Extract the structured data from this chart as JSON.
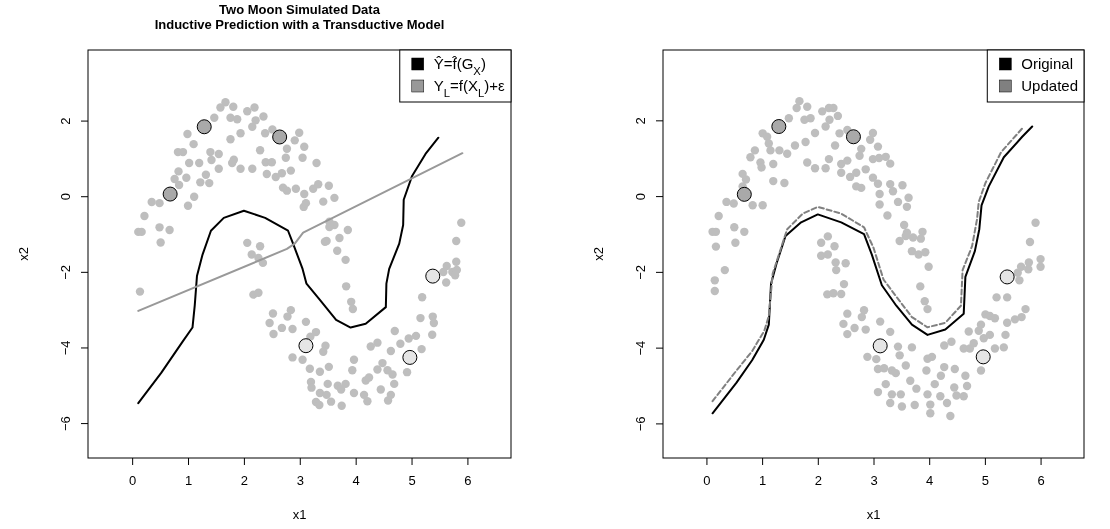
{
  "chart_data": [
    {
      "type": "scatter",
      "title": "Two Moon Simulated Data",
      "subtitle": "Inductive Prediction with a Transductive Model",
      "xlabel": "x1",
      "ylabel": "x2",
      "xlim": [
        -0.79,
        6.78
      ],
      "ylim": [
        -6.91,
        3.88
      ],
      "xticks": [
        0,
        1,
        2,
        3,
        4,
        5,
        6
      ],
      "yticks": [
        {
          "value": -6,
          "label": "−6"
        },
        {
          "value": -4,
          "label": "−4"
        },
        {
          "value": -2,
          "label": "−2"
        },
        {
          "value": 0,
          "label": "0"
        },
        {
          "value": 2,
          "label": "2"
        }
      ],
      "legend": "top right",
      "series": [
        {
          "type": "scatter",
          "marker": "circle",
          "color": "#bebebe",
          "x": [
            1.67,
            1.58,
            1.81,
            2.06,
            2.19,
            2.35,
            2.21,
            1.76,
            1.88,
            1.94,
            2.15,
            2.38,
            2.51,
            1.47,
            0.99,
            1.1,
            1.76,
            2.91,
            2.99,
            3.08,
            2.77,
            2.29,
            0.82,
            0.91,
            1.4,
            1.55,
            1.02,
            1.2,
            1.42,
            1.82,
            1.79,
            1.94,
            2.15,
            2.39,
            2.5,
            2.75,
            3.05,
            3.3,
            2.41,
            2.57,
            2.68,
            2.84,
            1.55,
            1.32,
            0.97,
            0.83,
            0.76,
            1.22,
            1.38,
            0.84,
            2.7,
            2.77,
            2.93,
            3.24,
            3.33,
            3.52,
            3.08,
            3.07,
            3.11,
            3.42,
            3.62,
            0.35,
            0.49,
            1.11,
            1.0,
            0.22,
            0.11,
            0.17,
            0.49,
            0.67,
            0.51,
            0.14,
            3.53,
            3.62,
            3.53,
            3.86,
            3.48,
            3.45,
            3.71,
            3.67,
            3.82,
            3.83,
            3.92,
            3.95,
            2.06,
            2.29,
            2.14,
            2.26,
            2.34,
            2.17,
            2.26,
            2.52,
            2.46,
            2.68,
            2.53,
            2.78,
            2.84,
            2.87,
            3.11,
            3.29,
            3.19,
            3.46,
            3.42,
            2.87,
            3.05,
            3.18,
            3.36,
            3.52,
            3.97,
            3.94,
            3.2,
            3.21,
            3.5,
            3.68,
            3.82,
            3.74,
            3.36,
            3.48,
            3.29,
            3.35,
            3.56,
            3.75,
            3.97,
            4.15,
            4.21,
            4.18,
            4.24,
            4.27,
            4.39,
            4.39,
            4.48,
            4.57,
            4.63,
            4.7,
            4.8,
            4.66,
            4.69,
            4.45,
            4.63,
            4.58,
            4.92,
            4.95,
            5.08,
            5.18,
            5.16,
            5.19,
            5.38,
            5.37,
            5.4,
            5.57,
            5.63,
            5.62,
            5.73,
            5.8,
            5.81,
            5.78,
            5.8,
            5.89
          ],
          "values": [
            2.5,
            2.36,
            2.38,
            2.26,
            2.36,
            2.12,
            2.02,
            2.09,
            2.05,
            1.68,
            1.85,
            1.68,
            1.78,
            2.09,
            1.66,
            1.39,
            1.52,
            1.49,
            1.69,
            1.32,
            1.27,
            1.23,
            1.18,
            1.18,
            1.18,
            1.13,
            0.89,
            0.89,
            0.97,
            0.98,
            0.89,
            0.74,
            0.74,
            0.91,
            0.91,
            1.03,
            1.03,
            0.89,
            0.6,
            0.52,
            0.62,
            0.69,
            0.74,
            0.58,
            0.5,
            0.67,
            0.47,
            0.38,
            0.36,
            0.31,
            0.24,
            0.16,
            0.21,
            0.21,
            0.33,
            0.29,
            0.07,
            -0.27,
            -0.17,
            -0.13,
            -0.03,
            -0.14,
            -0.17,
            0.0,
            -0.24,
            -0.51,
            -0.93,
            -0.93,
            -0.81,
            -0.88,
            -1.21,
            -2.51,
            -0.66,
            -0.75,
            -0.8,
            -0.88,
            -1.17,
            -1.19,
            -1.09,
            -1.43,
            -1.67,
            -2.37,
            -2.78,
            -2.97,
            -1.22,
            -1.31,
            -1.53,
            -1.62,
            -1.75,
            -2.59,
            -2.54,
            -3.09,
            -3.34,
            -3.47,
            -3.63,
            -3.17,
            -3.0,
            -3.5,
            -3.31,
            -3.58,
            -3.7,
            -3.94,
            -4.1,
            -4.25,
            -4.31,
            -4.55,
            -4.63,
            -4.5,
            -4.31,
            -4.59,
            -4.9,
            -5.05,
            -4.95,
            -5.0,
            -4.95,
            -5.1,
            -5.19,
            -5.24,
            -5.43,
            -5.51,
            -5.42,
            -5.53,
            -5.19,
            -5.24,
            -5.41,
            -4.86,
            -4.78,
            -3.96,
            -3.86,
            -4.57,
            -4.4,
            -4.59,
            -4.08,
            -3.55,
            -3.89,
            -4.7,
            -4.95,
            -5.1,
            -5.24,
            -5.39,
            -4.64,
            -3.75,
            -3.68,
            -4.03,
            -3.21,
            -2.66,
            -3.17,
            -3.65,
            -3.34,
            -1.99,
            -1.83,
            -2.27,
            -1.99,
            -1.72,
            -1.94,
            -2.08,
            -1.17,
            -0.69
          ]
        },
        {
          "type": "scatter",
          "marker": "circle",
          "colors": [
            "#a9a9a9",
            "#a9a9a9",
            "#a9a9a9",
            "#e5e5e5",
            "#e5e5e5",
            "#e5e5e5"
          ],
          "x": [
            1.29,
            2.64,
            0.68,
            5.38,
            3.11,
            4.97
          ],
          "values": [
            1.85,
            1.58,
            0.07,
            -2.1,
            -3.94,
            -4.25
          ]
        },
        {
          "type": "line",
          "name": "Ŷ=f̂(G$_{X}$)",
          "color": "#000000",
          "line_style": "solid",
          "x": [
            0.11,
            0.52,
            0.9,
            1.08,
            1.12,
            1.16,
            1.26,
            1.41,
            1.64,
            2.0,
            2.38,
            2.79,
            2.88,
            3.05,
            3.12,
            3.36,
            3.65,
            3.91,
            4.18,
            4.54,
            4.55,
            4.6,
            4.78,
            4.85,
            4.86,
            5.01,
            5.25,
            5.48
          ],
          "values": [
            -5.46,
            -4.66,
            -3.84,
            -3.46,
            -2.88,
            -2.1,
            -1.53,
            -0.9,
            -0.56,
            -0.37,
            -0.56,
            -0.9,
            -1.24,
            -1.91,
            -2.3,
            -2.73,
            -3.26,
            -3.46,
            -3.36,
            -2.92,
            -2.3,
            -1.91,
            -1.24,
            -0.75,
            -0.08,
            0.55,
            1.13,
            1.56
          ]
        },
        {
          "type": "line",
          "name": "Y$_{L}$=f(X$_{L}$)+ε",
          "color": "#999999",
          "line_style": "solid",
          "x": [
            0.11,
            2.77,
            2.91,
            3.06,
            5.91
          ],
          "values": [
            -3.02,
            -1.38,
            -1.24,
            -0.95,
            1.15
          ]
        }
      ]
    },
    {
      "type": "scatter",
      "xlabel": "x1",
      "ylabel": "x2",
      "xlim": [
        -0.78,
        6.78
      ],
      "ylim": [
        -6.9,
        3.87
      ],
      "xticks": [
        0,
        1,
        2,
        3,
        4,
        5,
        6
      ],
      "yticks": [
        {
          "value": -6,
          "label": "−6"
        },
        {
          "value": -4,
          "label": "−4"
        },
        {
          "value": -2,
          "label": "−2"
        },
        {
          "value": 0,
          "label": "0"
        },
        {
          "value": 2,
          "label": "2"
        }
      ],
      "legend": "top right",
      "series": [
        {
          "type": "scatter",
          "marker": "circle",
          "color": "#bebebe",
          "x": [
            1.67,
            1.62,
            1.81,
            2.08,
            2.2,
            2.28,
            2.36,
            2.21,
            1.87,
            1.76,
            2.14,
            1.95,
            1.48,
            1.01,
            1.09,
            1.12,
            1.78,
            1.59,
            2.31,
            2.39,
            2.53,
            2.99,
            2.94,
            3.08,
            2.78,
            2.75,
            0.87,
            0.79,
            1.15,
            1.31,
            1.45,
            0.97,
            1.2,
            0.99,
            1.81,
            1.95,
            2.14,
            2.2,
            2.42,
            2.53,
            2.42,
            2.58,
            2.69,
            2.86,
            2.99,
            3.1,
            3.22,
            3.3,
            2.99,
            3.08,
            2.78,
            2.69,
            3.11,
            3.3,
            3.35,
            3.52,
            3.44,
            3.6,
            3.63,
            3.11,
            3.25,
            0.65,
            0.71,
            0.65,
            0.83,
            1.01,
            1.4,
            1.2,
            0.36,
            0.49,
            0.22,
            0.11,
            0.17,
            0.5,
            0.68,
            0.52,
            0.17,
            0.33,
            0.15,
            0.15,
            3.55,
            3.6,
            3.47,
            3.58,
            3.71,
            3.88,
            3.85,
            3.69,
            3.81,
            3.93,
            3.99,
            3.84,
            3.92,
            3.97,
            2.06,
            2.18,
            2.3,
            2.06,
            2.18,
            2.32,
            2.33,
            2.5,
            2.47,
            2.28,
            2.17,
            2.42,
            2.53,
            2.46,
            2.83,
            2.79,
            2.86,
            2.66,
            2.53,
            3.12,
            3.3,
            2.89,
            3.05,
            3.08,
            3.19,
            3.44,
            3.69,
            3.47,
            3.33,
            3.58,
            3.4,
            3.22,
            3.08,
            3.33,
            3.3,
            3.49,
            3.51,
            3.66,
            3.77,
            3.74,
            3.97,
            4.02,
            4.02,
            3.95,
            3.97,
            4.05,
            4.1,
            4.21,
            4.2,
            4.32,
            4.38,
            4.27,
            4.4,
            4.46,
            4.27,
            4.45,
            4.49,
            4.62,
            4.68,
            4.65,
            4.62,
            4.73,
            4.8,
            4.71,
            4.89,
            4.93,
            4.93,
            4.98,
            5.01,
            5.09,
            5.18,
            5.09,
            5.18,
            5.34,
            5.4,
            5.37,
            5.54,
            5.66,
            5.73,
            5.21,
            5.4,
            5.62,
            5.65,
            5.59,
            5.79,
            5.78,
            6.0,
            6.0,
            5.81,
            5.91
          ],
          "values": [
            2.52,
            2.34,
            2.37,
            2.25,
            2.34,
            2.34,
            2.13,
            2.03,
            2.07,
            2.03,
            1.85,
            1.68,
            2.07,
            1.67,
            1.58,
            1.4,
            1.44,
            1.35,
            1.35,
            1.67,
            1.76,
            1.68,
            1.5,
            1.32,
            1.26,
            1.08,
            1.22,
            1.04,
            1.22,
            1.22,
            1.13,
            0.9,
            0.86,
            0.77,
            0.9,
            0.75,
            0.75,
            0.99,
            0.86,
            0.95,
            0.63,
            0.52,
            0.63,
            0.72,
            0.99,
            1.02,
            1.05,
            0.87,
            0.5,
            0.34,
            0.23,
            0.27,
            0.07,
            0.33,
            0.14,
            0.3,
            -0.14,
            -0.27,
            -0.03,
            -0.21,
            -0.5,
            0.6,
            0.45,
            0.27,
            -0.23,
            -0.23,
            0.36,
            0.41,
            -0.14,
            -0.18,
            -0.51,
            -0.93,
            -0.93,
            -0.81,
            -0.93,
            -1.22,
            -1.32,
            -1.94,
            -2.21,
            -2.49,
            -0.75,
            -0.95,
            -1.17,
            -1.04,
            -1.08,
            -0.93,
            -1.11,
            -1.44,
            -1.53,
            -1.47,
            -1.85,
            -2.37,
            -2.76,
            -2.97,
            -1.22,
            -1.05,
            -1.31,
            -1.56,
            -1.53,
            -1.74,
            -1.94,
            -1.76,
            -2.31,
            -2.55,
            -2.58,
            -2.57,
            -3.09,
            -3.36,
            -3.0,
            -3.18,
            -3.51,
            -3.47,
            -3.63,
            -3.3,
            -3.57,
            -4.23,
            -4.29,
            -4.55,
            -4.53,
            -3.96,
            -3.98,
            -4.19,
            -4.59,
            -4.46,
            -4.66,
            -4.95,
            -5.16,
            -5.22,
            -5.45,
            -5.22,
            -5.54,
            -4.86,
            -5.07,
            -5.5,
            -5.22,
            -5.49,
            -5.72,
            -4.59,
            -4.28,
            -4.23,
            -4.95,
            -4.73,
            -5.27,
            -5.45,
            -5.79,
            -4.5,
            -3.83,
            -4.55,
            -3.93,
            -5.04,
            -5.25,
            -5.27,
            -5.0,
            -4.73,
            -4.01,
            -4.01,
            -3.87,
            -3.56,
            -3.54,
            -3.38,
            -4.59,
            -3.74,
            -3.11,
            -3.15,
            -3.21,
            -3.65,
            -4.01,
            -3.98,
            -3.33,
            -3.65,
            -3.24,
            -3.18,
            -2.97,
            -2.66,
            -2.66,
            -2.21,
            -1.85,
            -2.01,
            -1.74,
            -1.92,
            -1.65,
            -1.85,
            -1.2,
            -0.69
          ]
        },
        {
          "type": "scatter",
          "marker": "circle",
          "colors": [
            "#a9a9a9",
            "#a9a9a9",
            "#a9a9a9",
            "#e5e5e5",
            "#e5e5e5",
            "#e5e5e5"
          ],
          "x": [
            1.3,
            2.64,
            0.68,
            5.4,
            3.12,
            4.97
          ],
          "values": [
            1.85,
            1.58,
            0.06,
            -2.12,
            -3.94,
            -4.23
          ]
        },
        {
          "type": "line",
          "name": "Original",
          "color": "#000000",
          "line_style": "solid",
          "x": [
            0.11,
            0.54,
            0.82,
            1.03,
            1.12,
            1.16,
            1.26,
            1.42,
            1.7,
            2.0,
            2.42,
            2.83,
            2.97,
            3.15,
            3.41,
            3.69,
            3.97,
            4.29,
            4.62,
            4.65,
            4.82,
            4.9,
            4.94,
            5.07,
            5.34,
            5.67,
            5.85
          ],
          "values": [
            -5.72,
            -4.91,
            -4.32,
            -3.78,
            -3.38,
            -2.3,
            -1.76,
            -1.04,
            -0.68,
            -0.47,
            -0.68,
            -0.99,
            -1.53,
            -2.34,
            -2.88,
            -3.38,
            -3.65,
            -3.51,
            -3.09,
            -2.12,
            -1.44,
            -0.86,
            -0.23,
            0.27,
            1.04,
            1.58,
            1.85
          ]
        },
        {
          "type": "line",
          "name": "Updated",
          "color": "#808080",
          "line_style": "dashed",
          "x": [
            0.11,
            0.54,
            0.82,
            1.04,
            1.12,
            1.19,
            1.31,
            1.45,
            1.73,
            2.0,
            2.42,
            2.83,
            3.0,
            3.18,
            3.44,
            3.69,
            3.97,
            4.29,
            4.57,
            4.6,
            4.77,
            4.86,
            4.89,
            5.01,
            5.29,
            5.67
          ],
          "values": [
            -5.4,
            -4.59,
            -4.08,
            -3.54,
            -3.15,
            -2.03,
            -1.49,
            -0.86,
            -0.45,
            -0.27,
            -0.45,
            -0.81,
            -1.35,
            -2.19,
            -2.7,
            -3.18,
            -3.45,
            -3.33,
            -2.88,
            -1.94,
            -1.31,
            -0.59,
            -0.14,
            0.36,
            1.17,
            1.8
          ]
        }
      ]
    }
  ]
}
